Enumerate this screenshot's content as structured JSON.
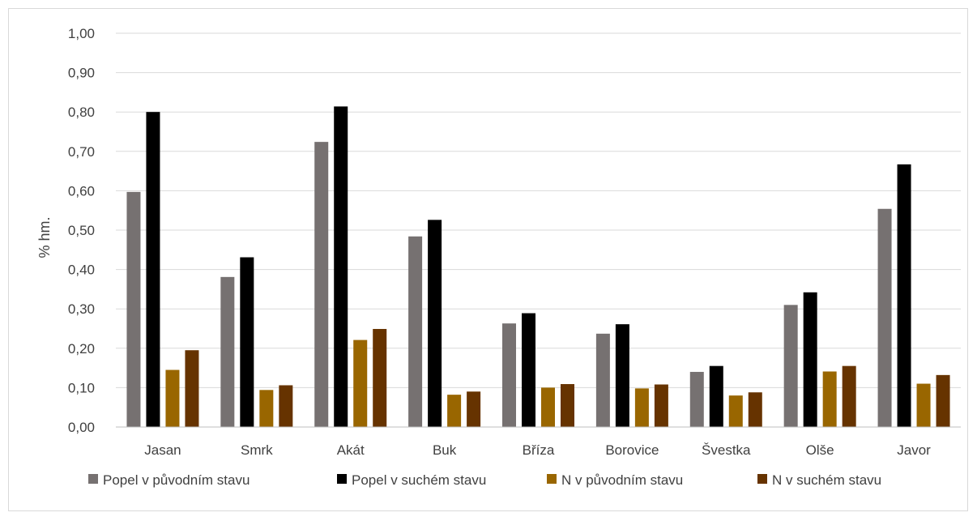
{
  "chart_data": {
    "type": "bar",
    "ylabel": "% hm.",
    "xlabel": "",
    "ylim": [
      0,
      1.0
    ],
    "y_ticks": [
      "0,00",
      "0,10",
      "0,20",
      "0,30",
      "0,40",
      "0,50",
      "0,60",
      "0,70",
      "0,80",
      "0,90",
      "1,00"
    ],
    "grid": true,
    "legend_position": "bottom",
    "categories": [
      "Jasan",
      "Smrk",
      "Akát",
      "Buk",
      "Bříza",
      "Borovice",
      "Švestka",
      "Olše",
      "Javor"
    ],
    "series": [
      {
        "name": "Popel v původním stavu",
        "color": "#767171",
        "values": [
          0.597,
          0.381,
          0.724,
          0.484,
          0.263,
          0.237,
          0.14,
          0.31,
          0.554
        ]
      },
      {
        "name": "Popel v suchém stavu",
        "color": "#000000",
        "values": [
          0.8,
          0.431,
          0.814,
          0.526,
          0.289,
          0.261,
          0.155,
          0.342,
          0.667
        ]
      },
      {
        "name": "N v původním stavu",
        "color": "#996600",
        "values": [
          0.145,
          0.094,
          0.221,
          0.082,
          0.1,
          0.098,
          0.08,
          0.141,
          0.11
        ]
      },
      {
        "name": "N v suchém stavu",
        "color": "#663300",
        "values": [
          0.195,
          0.106,
          0.249,
          0.09,
          0.109,
          0.108,
          0.088,
          0.155,
          0.132
        ]
      }
    ]
  },
  "colors": {
    "grid": "#d9d9d9",
    "axis": "#bfbfbf",
    "text": "#404040",
    "border": "#d9d9d9"
  }
}
